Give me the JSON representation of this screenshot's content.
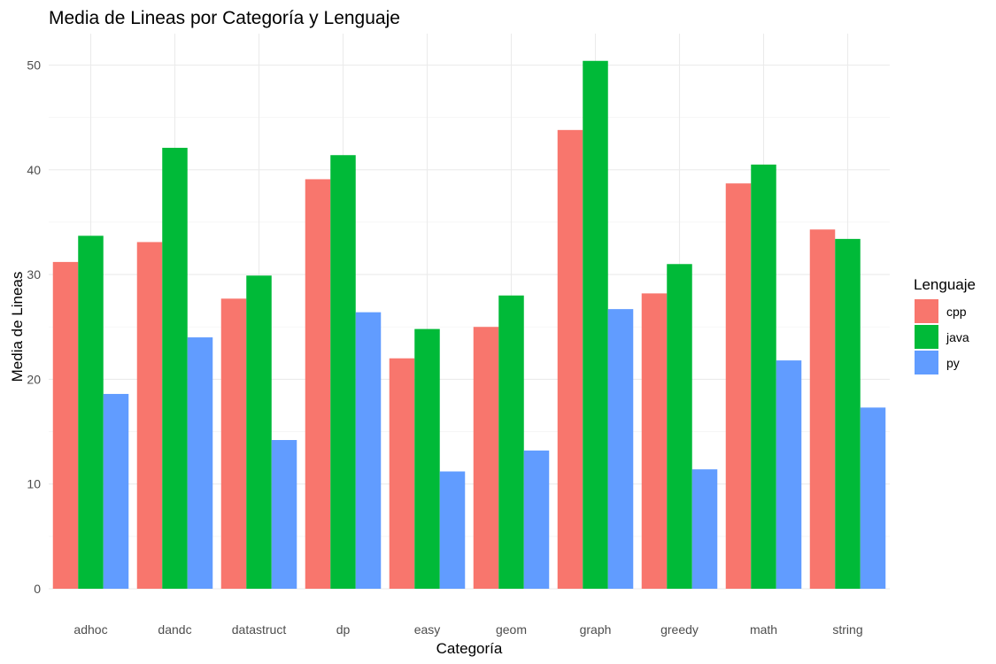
{
  "chart_data": {
    "type": "bar",
    "title": "Media de Lineas por Categoría y Lenguaje",
    "xlabel": "Categoría",
    "ylabel": "Media de Lineas",
    "categories": [
      "adhoc",
      "dandc",
      "datastruct",
      "dp",
      "easy",
      "geom",
      "graph",
      "greedy",
      "math",
      "string"
    ],
    "series": [
      {
        "name": "cpp",
        "color": "#F8766D",
        "values": [
          31.2,
          33.1,
          27.7,
          39.1,
          22.0,
          25.0,
          43.8,
          28.2,
          38.7,
          34.3
        ]
      },
      {
        "name": "java",
        "color": "#00BA38",
        "values": [
          33.7,
          42.1,
          29.9,
          41.4,
          24.8,
          28.0,
          50.4,
          31.0,
          40.5,
          33.4
        ]
      },
      {
        "name": "py",
        "color": "#619CFF",
        "values": [
          18.6,
          24.0,
          14.2,
          26.4,
          11.2,
          13.2,
          26.7,
          11.4,
          21.8,
          17.3
        ]
      }
    ],
    "ylim": [
      0,
      53
    ],
    "yticks": [
      0,
      10,
      20,
      30,
      40,
      50
    ],
    "grid": true,
    "legend": {
      "title": "Lenguaje",
      "position": "right"
    }
  }
}
